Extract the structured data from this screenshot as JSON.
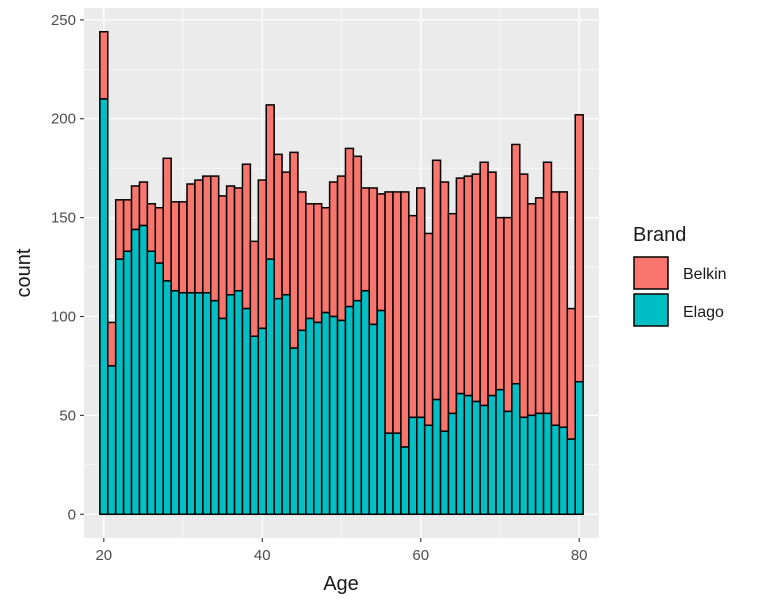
{
  "chart_data": {
    "type": "bar",
    "stacked": true,
    "xlabel": "Age",
    "ylabel": "count",
    "xlim": [
      17.5,
      82.5
    ],
    "ylim": [
      -12,
      256
    ],
    "x_ticks": [
      20,
      40,
      60,
      80
    ],
    "y_ticks": [
      0,
      50,
      100,
      150,
      200,
      250
    ],
    "grid": true,
    "legend": {
      "title": "Brand",
      "position": "right"
    },
    "x": [
      20,
      21,
      22,
      23,
      24,
      25,
      26,
      27,
      28,
      29,
      30,
      31,
      32,
      33,
      34,
      35,
      36,
      37,
      38,
      39,
      40,
      41,
      42,
      43,
      44,
      45,
      46,
      47,
      48,
      49,
      50,
      51,
      52,
      53,
      54,
      55,
      56,
      57,
      58,
      59,
      60,
      61,
      62,
      63,
      64,
      65,
      66,
      67,
      68,
      69,
      70,
      71,
      72,
      73,
      74,
      75,
      76,
      77,
      78,
      79,
      80
    ],
    "series": [
      {
        "name": "Elago",
        "color": "#00BFC4",
        "values": [
          210,
          75,
          129,
          133,
          144,
          146,
          133,
          127,
          118,
          113,
          112,
          112,
          112,
          112,
          108,
          99,
          111,
          113,
          104,
          90,
          94,
          129,
          109,
          111,
          84,
          93,
          99,
          97,
          102,
          100,
          98,
          105,
          108,
          113,
          96,
          103,
          41,
          41,
          34,
          49,
          49,
          45,
          58,
          42,
          51,
          61,
          60,
          57,
          55,
          60,
          63,
          52,
          66,
          49,
          50,
          51,
          51,
          45,
          44,
          38,
          67
        ]
      },
      {
        "name": "Belkin",
        "color": "#F8766D",
        "values": [
          34,
          22,
          30,
          26,
          22,
          22,
          24,
          28,
          62,
          45,
          46,
          55,
          57,
          59,
          63,
          62,
          55,
          52,
          73,
          48,
          75,
          78,
          73,
          62,
          99,
          70,
          58,
          60,
          53,
          68,
          73,
          80,
          73,
          52,
          69,
          59,
          122,
          122,
          129,
          102,
          116,
          97,
          121,
          126,
          101,
          109,
          111,
          115,
          123,
          113,
          87,
          98,
          121,
          123,
          107,
          109,
          127,
          118,
          119,
          66,
          135
        ]
      }
    ]
  }
}
